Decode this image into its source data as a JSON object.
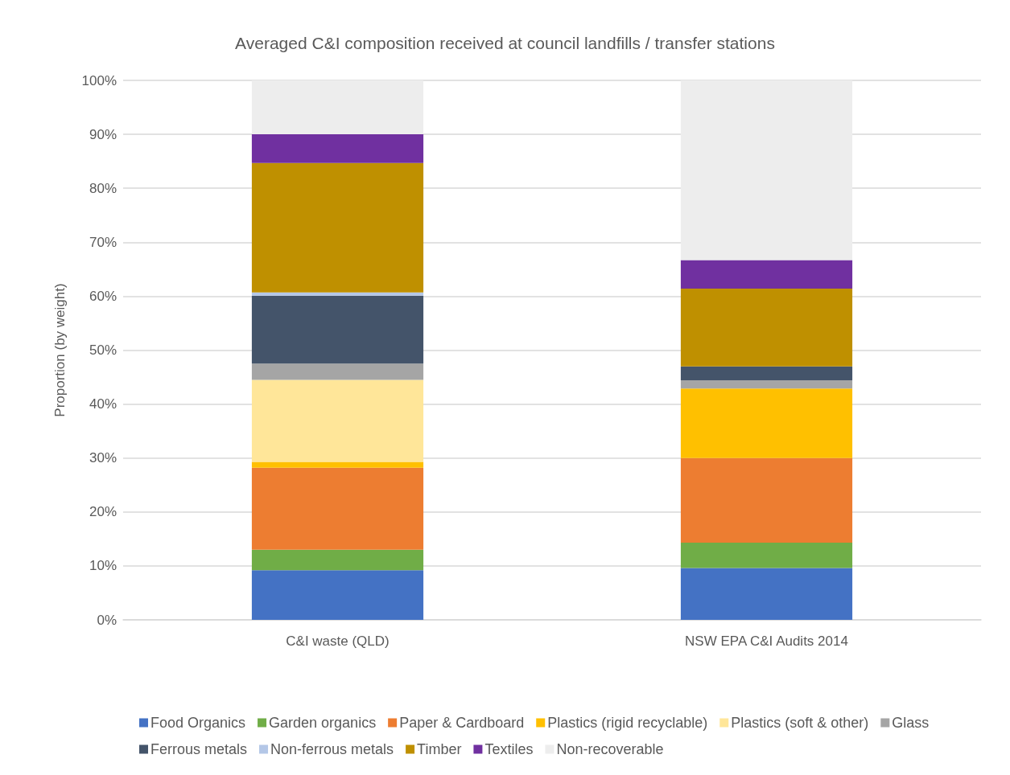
{
  "chart_data": {
    "type": "bar",
    "stacked": true,
    "title": "Averaged C&I composition received at council landfills / transfer stations",
    "ylabel": "Proportion (by weight)",
    "categories": [
      "C&I waste (QLD)",
      "NSW EPA C&I Audits 2014"
    ],
    "series": [
      {
        "name": "Food Organics",
        "color": "#4472c4",
        "values": [
          9.2,
          9.6
        ]
      },
      {
        "name": "Garden organics",
        "color": "#70ad47",
        "values": [
          3.8,
          4.7
        ]
      },
      {
        "name": "Paper & Cardboard",
        "color": "#ed7d31",
        "values": [
          15.2,
          15.7
        ]
      },
      {
        "name": "Plastics (rigid recyclable)",
        "color": "#ffc000",
        "values": [
          1.1,
          12.9
        ]
      },
      {
        "name": "Plastics (soft & other)",
        "color": "#ffe699",
        "values": [
          15.2,
          0
        ]
      },
      {
        "name": "Glass",
        "color": "#a5a5a5",
        "values": [
          3.0,
          1.5
        ]
      },
      {
        "name": "Ferrous metals",
        "color": "#44546a",
        "values": [
          12.6,
          2.6
        ]
      },
      {
        "name": "Non-ferrous metals",
        "color": "#b4c7e7",
        "values": [
          0.6,
          0
        ]
      },
      {
        "name": "Timber",
        "color": "#bf9000",
        "values": [
          24.0,
          14.4
        ]
      },
      {
        "name": "Textiles",
        "color": "#7030a0",
        "values": [
          5.3,
          5.3
        ]
      },
      {
        "name": "Non-recoverable",
        "color": "#ededed",
        "values": [
          10.0,
          33.3
        ]
      }
    ],
    "ylim": [
      0,
      100
    ],
    "yticks": [
      {
        "value": 0,
        "label": "0%"
      },
      {
        "value": 10,
        "label": "10%"
      },
      {
        "value": 20,
        "label": "20%"
      },
      {
        "value": 30,
        "label": "30%"
      },
      {
        "value": 40,
        "label": "40%"
      },
      {
        "value": 50,
        "label": "50%"
      },
      {
        "value": 60,
        "label": "60%"
      },
      {
        "value": 70,
        "label": "70%"
      },
      {
        "value": 80,
        "label": "80%"
      },
      {
        "value": 90,
        "label": "90%"
      },
      {
        "value": 100,
        "label": "100%"
      }
    ],
    "grid": "y",
    "legend": "bottom"
  }
}
